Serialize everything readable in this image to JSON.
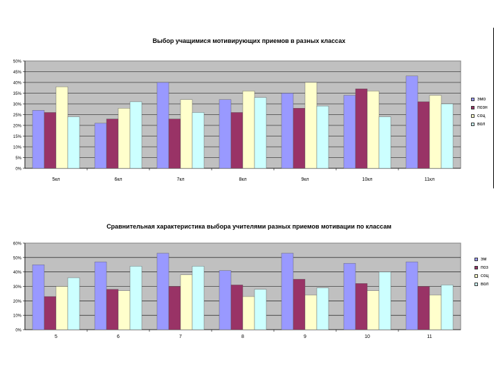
{
  "chart_data": [
    {
      "type": "bar",
      "title": "Выбор учащимися мотивирующих приемов в разных классах",
      "categories": [
        "5кл",
        "6кл",
        "7кл",
        "8кл",
        "9кл",
        "10кл",
        "11кл"
      ],
      "series": [
        {
          "name": "эмо",
          "color": "#9999ff",
          "values": [
            27,
            21,
            40,
            32,
            35,
            34,
            43
          ]
        },
        {
          "name": "позн",
          "color": "#993366",
          "values": [
            26,
            23,
            23,
            26,
            28,
            37,
            31
          ]
        },
        {
          "name": "соц",
          "color": "#ffffcc",
          "values": [
            38,
            28,
            32,
            36,
            40,
            36,
            34
          ]
        },
        {
          "name": "вол",
          "color": "#ccffff",
          "values": [
            24,
            31,
            26,
            33,
            29,
            24,
            30
          ]
        }
      ],
      "ylim": [
        0,
        50
      ],
      "yticks": [
        "0%",
        "5%",
        "10%",
        "15%",
        "20%",
        "25%",
        "30%",
        "35%",
        "40%",
        "45%",
        "50%"
      ],
      "xlabel": "",
      "ylabel": "",
      "legend_position": "right"
    },
    {
      "type": "bar",
      "title": "Сравнительная характеристика выбора учителями разных приемов мотивации по классам",
      "categories": [
        "5",
        "6",
        "7",
        "8",
        "9",
        "10",
        "11"
      ],
      "series": [
        {
          "name": "эм",
          "color": "#9999ff",
          "values": [
            45,
            47,
            53,
            41,
            53,
            46,
            47
          ]
        },
        {
          "name": "поз",
          "color": "#993366",
          "values": [
            23,
            28,
            30,
            31,
            35,
            32,
            30
          ]
        },
        {
          "name": "соц",
          "color": "#ffffcc",
          "values": [
            30,
            27,
            38,
            23,
            24,
            27,
            24
          ]
        },
        {
          "name": "вол",
          "color": "#ccffff",
          "values": [
            36,
            44,
            44,
            28,
            29,
            40,
            31
          ]
        }
      ],
      "ylim": [
        0,
        60
      ],
      "yticks": [
        "0%",
        "10%",
        "20%",
        "30%",
        "40%",
        "50%",
        "60%"
      ],
      "xlabel": "",
      "ylabel": "",
      "legend_position": "right"
    }
  ]
}
